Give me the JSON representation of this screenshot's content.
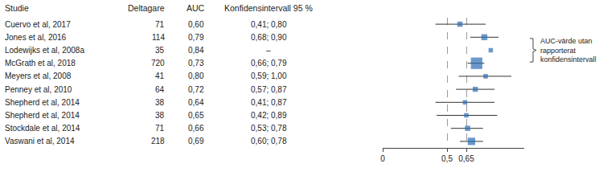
{
  "chart_data": {
    "type": "forest",
    "columns": [
      "Studie",
      "Deltagare",
      "AUC",
      "Konfidensintervall 95 %"
    ],
    "categories": [
      "Cuervo et al, 2017",
      "Jones et al, 2016",
      "Lodewijks et al, 2008a",
      "McGrath et al, 2018",
      "Meyers et al, 2008",
      "Penney et al, 2010",
      "Shepherd et al, 2014",
      "Shepherd et al, 2014",
      "Stockdale et al, 2014",
      "Vaswani et al, 2014"
    ],
    "participants": [
      71,
      114,
      35,
      720,
      41,
      64,
      38,
      38,
      71,
      218
    ],
    "values": [
      0.6,
      0.79,
      0.84,
      0.73,
      0.8,
      0.72,
      0.64,
      0.65,
      0.66,
      0.69
    ],
    "value_labels": [
      "0,60",
      "0,79",
      "0,84",
      "0,73",
      "0,80",
      "0,72",
      "0,64",
      "0,65",
      "0,66",
      "0,69"
    ],
    "ci_low": [
      0.41,
      0.68,
      null,
      0.66,
      0.59,
      0.57,
      0.41,
      0.42,
      0.53,
      0.6
    ],
    "ci_high": [
      0.8,
      0.9,
      null,
      0.79,
      1.0,
      0.87,
      0.87,
      0.89,
      0.78,
      0.78
    ],
    "ci_labels": [
      "0,41; 0,80",
      "0,68; 0,90",
      "–",
      "0,66; 0,79",
      "0,59; 1,00",
      "0,57; 0,87",
      "0,41; 0,87",
      "0,42; 0,89",
      "0,53; 0,78",
      "0,60; 0,78"
    ],
    "annotation": "AUC-värde utan rapporterat konfidensintervall",
    "xlim": [
      0,
      1.1
    ],
    "xticks": [
      0,
      {
        "value": 0.5,
        "label": "0,5"
      },
      {
        "value": 0.65,
        "label": "0,65"
      }
    ],
    "color": "#2b6cb5",
    "marker": "square",
    "grid": true,
    "tick_labels": "x"
  }
}
